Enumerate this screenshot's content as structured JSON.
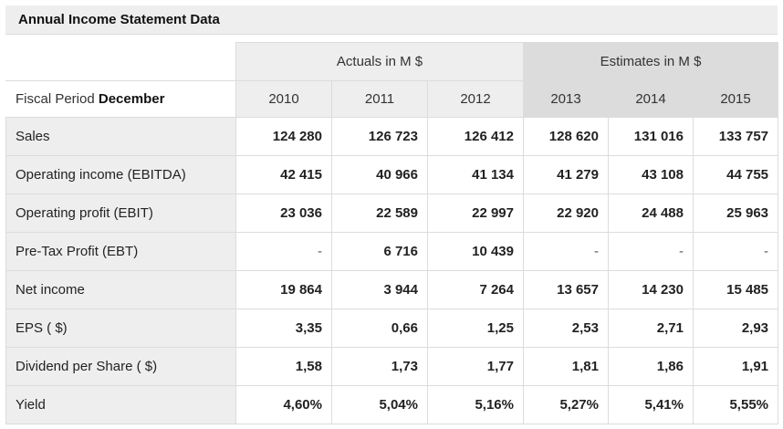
{
  "title": "Annual Income Statement Data",
  "header": {
    "actuals_label": "Actuals in M $",
    "estimates_label": "Estimates in M $",
    "period_prefix": "Fiscal Period ",
    "period_month": "December",
    "years": [
      "2010",
      "2011",
      "2012",
      "2013",
      "2014",
      "2015"
    ]
  },
  "rows": [
    {
      "label": "Sales",
      "values": [
        "124 280",
        "126 723",
        "126 412",
        "128 620",
        "131 016",
        "133 757"
      ]
    },
    {
      "label": "Operating income (EBITDA)",
      "values": [
        "42 415",
        "40 966",
        "41 134",
        "41 279",
        "43 108",
        "44 755"
      ]
    },
    {
      "label": "Operating profit (EBIT)",
      "values": [
        "23 036",
        "22 589",
        "22 997",
        "22 920",
        "24 488",
        "25 963"
      ]
    },
    {
      "label": "Pre-Tax Profit (EBT)",
      "values": [
        "-",
        "6 716",
        "10 439",
        "-",
        "-",
        "-"
      ]
    },
    {
      "label": "Net income",
      "values": [
        "19 864",
        "3 944",
        "7 264",
        "13 657",
        "14 230",
        "15 485"
      ]
    },
    {
      "label": "EPS ( $)",
      "values": [
        "3,35",
        "0,66",
        "1,25",
        "2,53",
        "2,71",
        "2,93"
      ]
    },
    {
      "label": "Dividend per Share ( $)",
      "values": [
        "1,58",
        "1,73",
        "1,77",
        "1,81",
        "1,86",
        "1,91"
      ]
    },
    {
      "label": "Yield",
      "values": [
        "4,60%",
        "5,04%",
        "5,16%",
        "5,27%",
        "5,41%",
        "5,55%"
      ]
    }
  ]
}
